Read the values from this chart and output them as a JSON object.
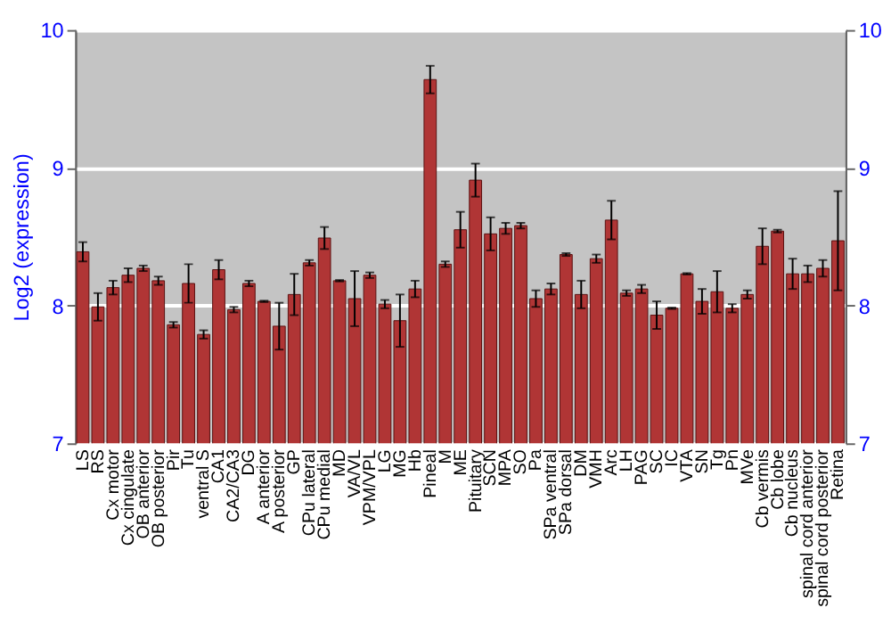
{
  "chart_data": {
    "type": "bar",
    "ylabel": "Log2 (expression)",
    "categories": [
      "LS",
      "RS",
      "Cx motor",
      "Cx cingulate",
      "OB anterior",
      "OB posterior",
      "Pir",
      "Tu",
      "ventral S",
      "CA1",
      "CA2/CA3",
      "DG",
      "A anterior",
      "A posterior",
      "GP",
      "CPu lateral",
      "CPu medial",
      "MD",
      "VA/VL",
      "VPM/VPL",
      "LG",
      "MG",
      "Hb",
      "Pineal",
      "M",
      "ME",
      "Pituitary",
      "SCN",
      "MPA",
      "SO",
      "Pa",
      "SPa ventral",
      "SPa dorsal",
      "DM",
      "VMH",
      "Arc",
      "LH",
      "PAG",
      "SC",
      "IC",
      "VTA",
      "SN",
      "Tg",
      "Pn",
      "MVe",
      "Cb vermis",
      "Cb lobe",
      "Cb nucleus",
      "spinal cord anterior",
      "spinal cord posterior",
      "Retina"
    ],
    "values": [
      8.39,
      7.99,
      8.13,
      8.22,
      8.27,
      8.18,
      7.86,
      8.16,
      7.79,
      8.26,
      7.97,
      8.16,
      8.03,
      7.85,
      8.08,
      8.31,
      8.49,
      8.18,
      8.05,
      8.22,
      8.01,
      7.89,
      8.12,
      9.64,
      8.3,
      8.55,
      8.91,
      8.52,
      8.56,
      8.58,
      8.05,
      8.12,
      8.37,
      8.08,
      8.34,
      8.62,
      8.09,
      8.12,
      7.93,
      7.98,
      8.23,
      8.03,
      8.1,
      7.98,
      8.08,
      8.43,
      8.54,
      8.23,
      8.23,
      8.27,
      8.47
    ],
    "errors": [
      0.07,
      0.1,
      0.05,
      0.05,
      0.02,
      0.03,
      0.02,
      0.14,
      0.03,
      0.07,
      0.02,
      0.02,
      0.005,
      0.17,
      0.15,
      0.02,
      0.08,
      0.005,
      0.2,
      0.02,
      0.03,
      0.19,
      0.06,
      0.1,
      0.02,
      0.13,
      0.12,
      0.12,
      0.04,
      0.02,
      0.06,
      0.04,
      0.01,
      0.1,
      0.03,
      0.14,
      0.02,
      0.03,
      0.1,
      0.005,
      0.005,
      0.09,
      0.15,
      0.03,
      0.03,
      0.13,
      0.01,
      0.11,
      0.06,
      0.06,
      0.36
    ],
    "color": "#b03535",
    "ylim": [
      7,
      10
    ],
    "yticks": [
      7,
      8,
      9,
      10
    ],
    "y2lim": [
      7,
      10
    ],
    "y2ticks": [
      7,
      8,
      9,
      10
    ],
    "grid": "y"
  }
}
